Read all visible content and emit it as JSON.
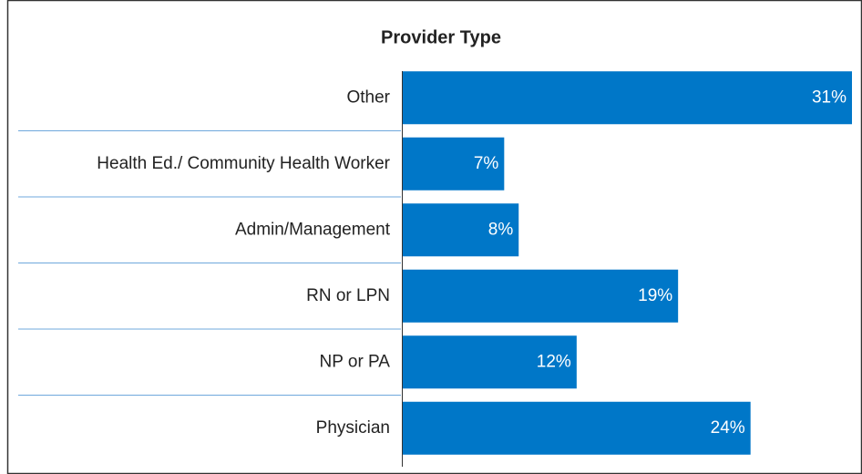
{
  "chart_data": {
    "type": "bar",
    "orientation": "horizontal",
    "title": "Provider Type",
    "categories": [
      "Other",
      "Health Ed./ Community Health Worker",
      "Admin/Management",
      "RN or LPN",
      "NP or PA",
      "Physician"
    ],
    "values": [
      31,
      7,
      8,
      19,
      12,
      24
    ],
    "value_labels": [
      "31%",
      "7%",
      "8%",
      "19%",
      "12%",
      "24%"
    ],
    "color": "#0077c8"
  }
}
